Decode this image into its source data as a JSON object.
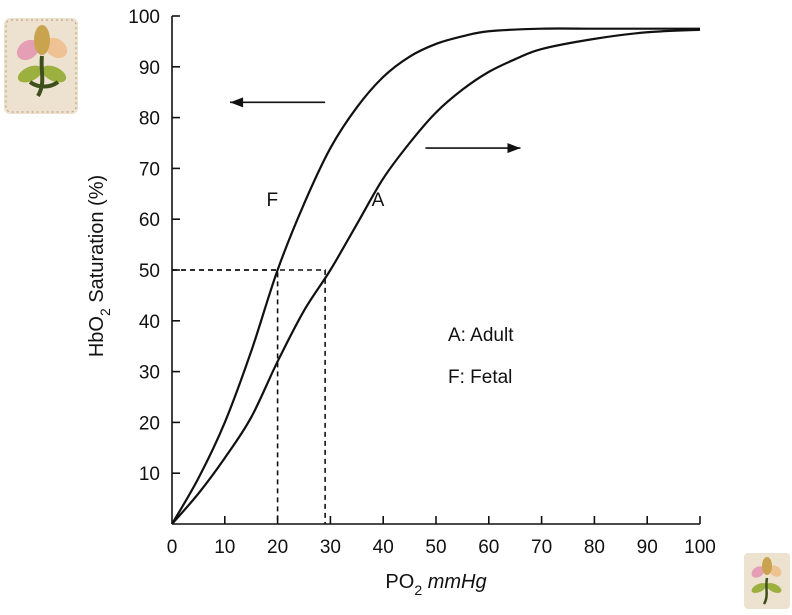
{
  "chart_data": {
    "type": "line",
    "title": "",
    "xlabel_main": "PO",
    "xlabel_sub": "2",
    "xlabel_unit": "mmHg",
    "ylabel_pre": "HbO",
    "ylabel_sub": "2",
    "ylabel_post": " Saturation (%)",
    "xlim": [
      0,
      100
    ],
    "ylim": [
      0,
      100
    ],
    "x_ticks": [
      "0",
      "10",
      "20",
      "30",
      "40",
      "50",
      "60",
      "70",
      "80",
      "90",
      "100"
    ],
    "y_ticks": [
      "10",
      "20",
      "30",
      "40",
      "50",
      "60",
      "70",
      "80",
      "90",
      "100"
    ],
    "grid": false,
    "series": [
      {
        "name": "F",
        "label": "F: Fetal",
        "x": [
          0,
          5,
          10,
          15,
          20,
          25,
          30,
          35,
          40,
          45,
          50,
          55,
          60,
          70,
          80,
          90,
          100
        ],
        "y": [
          0,
          9,
          20,
          34,
          50,
          63,
          74,
          82,
          88,
          92,
          94.5,
          96,
          97,
          97.5,
          97.5,
          97.5,
          97.5
        ]
      },
      {
        "name": "A",
        "label": "A: Adult",
        "x": [
          0,
          5,
          10,
          15,
          20,
          25,
          30,
          35,
          40,
          45,
          50,
          55,
          60,
          65,
          70,
          80,
          90,
          100
        ],
        "y": [
          0,
          6,
          13,
          21,
          32,
          42,
          50,
          59,
          68,
          75,
          81,
          85.5,
          89,
          91.5,
          93.5,
          95.5,
          96.8,
          97.3
        ]
      }
    ],
    "p50_markers": [
      {
        "series": "F",
        "x": 20,
        "y": 50
      },
      {
        "series": "A",
        "x": 29,
        "y": 50
      }
    ],
    "curve_labels": [
      {
        "text": "F",
        "x": 19,
        "y": 64
      },
      {
        "text": "A",
        "x": 39,
        "y": 64
      }
    ],
    "legend_lines": [
      "A: Adult",
      "F: Fetal"
    ],
    "arrows": [
      {
        "direction": "left",
        "x_from": 29,
        "x_to": 11,
        "y": 83
      },
      {
        "direction": "right",
        "x_from": 48,
        "x_to": 66,
        "y": 74
      }
    ]
  }
}
